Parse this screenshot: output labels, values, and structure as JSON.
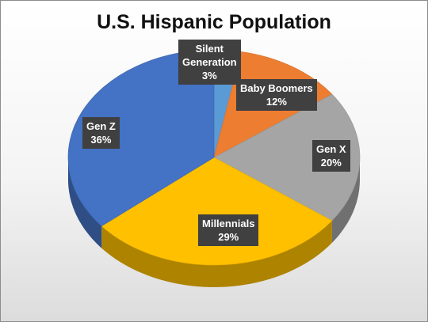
{
  "chart_data": {
    "type": "pie",
    "title": "U.S. Hispanic Population",
    "slices": [
      {
        "label": "Silent\nGeneration",
        "value": 3,
        "value_label": "3%",
        "color": "#5b9bd5"
      },
      {
        "label": "Baby Boomers",
        "value": 12,
        "value_label": "12%",
        "color": "#ed7d31"
      },
      {
        "label": "Gen X",
        "value": 20,
        "value_label": "20%",
        "color": "#a5a5a5"
      },
      {
        "label": "Millennials",
        "value": 29,
        "value_label": "29%",
        "color": "#ffc000"
      },
      {
        "label": "Gen Z",
        "value": 36,
        "value_label": "36%",
        "color": "#4472c4"
      }
    ],
    "style": "3d-pie",
    "legend": "none",
    "data_labels": "category-and-percent"
  }
}
